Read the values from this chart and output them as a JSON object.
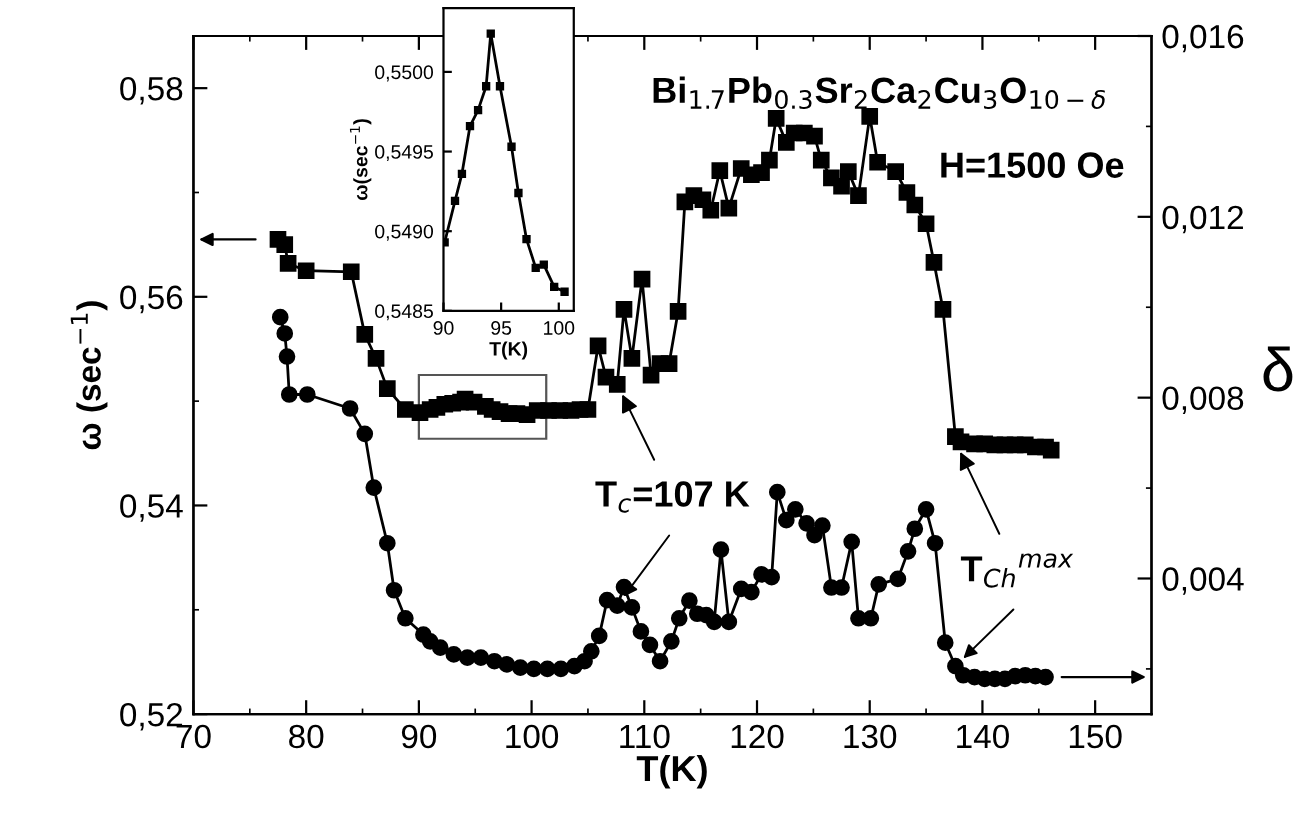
{
  "chart_data": [
    {
      "type": "line",
      "xlabel": "T(K)",
      "ylabel": "ω (sec$^{−1}$)",
      "y2label": "δ",
      "xlim": [
        70,
        155
      ],
      "xticks": [
        70,
        {
          "value": 75,
          "label": null
        },
        80,
        {
          "value": 85,
          "label": null
        },
        90,
        {
          "value": 95,
          "label": null
        },
        100,
        {
          "value": 105,
          "label": null
        },
        110,
        {
          "value": 115,
          "label": null
        },
        120,
        {
          "value": 125,
          "label": null
        },
        130,
        {
          "value": 135,
          "label": null
        },
        140,
        {
          "value": 145,
          "label": null
        },
        150
      ],
      "ylim": [
        0.52,
        0.585
      ],
      "yticks": [
        {
          "value": 0.52,
          "label": "0,52"
        },
        {
          "value": 0.53,
          "label": null
        },
        {
          "value": 0.54,
          "label": "0,54"
        },
        {
          "value": 0.55,
          "label": null
        },
        {
          "value": 0.56,
          "label": "0,56"
        },
        {
          "value": 0.57,
          "label": null
        },
        {
          "value": 0.58,
          "label": "0,58"
        }
      ],
      "y2lim": [
        0.001,
        0.016
      ],
      "y2ticks": [
        {
          "value": 0.002,
          "label": null
        },
        {
          "value": 0.004,
          "label": "0,004"
        },
        {
          "value": 0.006,
          "label": null
        },
        {
          "value": 0.008,
          "label": "0,008"
        },
        {
          "value": 0.01,
          "label": null
        },
        {
          "value": 0.012,
          "label": "0,012"
        },
        {
          "value": 0.014,
          "label": null
        },
        {
          "value": 0.016,
          "label": "0,016"
        }
      ],
      "grid": false,
      "series": [
        {
          "color": "#000000",
          "marker": "square",
          "x": [
            77.5,
            78.1,
            78.4,
            80.0,
            84.0,
            85.2,
            86.2,
            87.2,
            88.8,
            90.1,
            91.0,
            91.6,
            92.3,
            93.0,
            93.7,
            94.1,
            94.9,
            95.9,
            96.5,
            97.2,
            98.0,
            98.7,
            99.6,
            100.5,
            101.5,
            102.5,
            103.5,
            104.3,
            105.0,
            105.9,
            106.6,
            107.6,
            108.2,
            108.9,
            109.8,
            110.6,
            111.4,
            112.2,
            113.0,
            113.6,
            114.4,
            115.2,
            115.9,
            116.7,
            117.5,
            118.6,
            119.5,
            120.4,
            121.1,
            121.7,
            122.6,
            123.3,
            124.2,
            125.1,
            125.7,
            126.6,
            127.5,
            128.1,
            129.0,
            130.0,
            130.7,
            132.3,
            133.3,
            134.0,
            135.0,
            135.7,
            136.5,
            137.6,
            138.1,
            139.3,
            140.2,
            141.1,
            142.0,
            142.9,
            143.8,
            144.7,
            145.6,
            146.1
          ],
          "values": [
            0.5655,
            0.565,
            0.5632,
            0.5625,
            0.5624,
            0.5564,
            0.5541,
            0.5512,
            0.5492,
            0.5489,
            0.5492,
            0.5494,
            0.5497,
            0.5498,
            0.5499,
            0.5502,
            0.5499,
            0.5495,
            0.5492,
            0.549,
            0.5488,
            0.5488,
            0.5487,
            0.5491,
            0.5491,
            0.5491,
            0.5491,
            0.5492,
            0.5492,
            0.5553,
            0.5523,
            0.5516,
            0.5588,
            0.5541,
            0.5617,
            0.5525,
            0.5536,
            0.5536,
            0.5586,
            0.5691,
            0.5697,
            0.5693,
            0.5683,
            0.5721,
            0.5685,
            0.5723,
            0.5717,
            0.5719,
            0.5731,
            0.5771,
            0.5748,
            0.5757,
            0.5757,
            0.5754,
            0.5731,
            0.5714,
            0.5706,
            0.572,
            0.5697,
            0.5773,
            0.5729,
            0.572,
            0.57,
            0.5688,
            0.567,
            0.5633,
            0.5588,
            0.5466,
            0.5461,
            0.5459,
            0.5459,
            0.5458,
            0.5458,
            0.5458,
            0.5458,
            0.5456,
            0.5456,
            0.5453
          ]
        },
        {
          "color": "#000000",
          "marker": "circle",
          "axis": "y2",
          "x": [
            77.7,
            78.1,
            78.3,
            78.5,
            80.1,
            83.9,
            85.2,
            86.0,
            87.2,
            87.8,
            88.8,
            90.4,
            91.0,
            91.9,
            93.1,
            94.3,
            95.5,
            96.7,
            97.8,
            99.0,
            100.2,
            101.4,
            102.6,
            103.8,
            104.7,
            105.3,
            106.0,
            106.7,
            107.6,
            108.2,
            108.9,
            109.7,
            110.5,
            111.4,
            112.4,
            113.1,
            114.0,
            114.7,
            115.5,
            116.2,
            116.8,
            117.5,
            118.6,
            119.5,
            120.4,
            121.3,
            121.8,
            122.6,
            123.4,
            124.4,
            125.1,
            125.8,
            126.6,
            127.5,
            128.4,
            129.0,
            130.1,
            130.8,
            132.5,
            133.4,
            134.0,
            135.0,
            135.8,
            136.7,
            137.6,
            138.3,
            139.3,
            140.2,
            141.1,
            142.0,
            142.9,
            143.8,
            144.7,
            145.6
          ],
          "values": [
            0.00978,
            0.00942,
            0.00891,
            0.00807,
            0.00807,
            0.00776,
            0.0072,
            0.00601,
            0.00478,
            0.00374,
            0.00312,
            0.00276,
            0.00261,
            0.00247,
            0.00232,
            0.00225,
            0.00225,
            0.00217,
            0.0021,
            0.00203,
            0.002,
            0.002,
            0.002,
            0.00206,
            0.00217,
            0.00239,
            0.00273,
            0.00352,
            0.0034,
            0.00381,
            0.00336,
            0.00283,
            0.00253,
            0.00217,
            0.00261,
            0.00312,
            0.00351,
            0.00322,
            0.00319,
            0.00304,
            0.00464,
            0.00304,
            0.00377,
            0.0037,
            0.00409,
            0.00403,
            0.00591,
            0.00529,
            0.00553,
            0.00522,
            0.00496,
            0.00517,
            0.0038,
            0.0038,
            0.00481,
            0.00312,
            0.00312,
            0.00387,
            0.00399,
            0.0046,
            0.0051,
            0.00553,
            0.00478,
            0.00258,
            0.00206,
            0.00186,
            0.00182,
            0.00178,
            0.00178,
            0.00178,
            0.00184,
            0.00186,
            0.00184,
            0.00182
          ]
        }
      ],
      "annotations": [
        "Bi$_{1.7}$Pb$_{0.3}$Sr$_{2}$Ca$_{2}$Cu$_{3}$O$_{10−δ}$",
        "H=1500 Oe",
        {
          "text": "T$_{c}$=107 K",
          "x": 107.6,
          "y": 0.5516
        },
        {
          "text": "T$_{Ch}$$^{max}$",
          "x": 137.6,
          "y": 0.5461
        }
      ]
    },
    {
      "type": "line",
      "xlabel": "T(K)",
      "ylabel": "ω(sec$^{−1}$)",
      "marker": "square",
      "grid": false,
      "xlim": [
        90,
        101.3
      ],
      "xticks": [
        90,
        95,
        100
      ],
      "ylim": [
        0.5485,
        0.5504
      ],
      "yticks": [
        {
          "value": 0.5485,
          "label": "0,5485"
        },
        {
          "value": 0.549,
          "label": "0,5490"
        },
        {
          "value": 0.5495,
          "label": "0,5495"
        },
        {
          "value": 0.55,
          "label": "0,5500"
        }
      ],
      "x": [
        90.1,
        91.0,
        91.6,
        92.3,
        93.0,
        93.7,
        94.1,
        94.9,
        95.9,
        96.5,
        97.2,
        98.0,
        98.7,
        99.6,
        100.5
      ],
      "values": [
        0.54893,
        0.54919,
        0.54936,
        0.54966,
        0.54976,
        0.54991,
        0.55024,
        0.54991,
        0.54953,
        0.54924,
        0.54895,
        0.54877,
        0.54879,
        0.54865,
        0.54862
      ],
      "color": "#000000"
    }
  ]
}
